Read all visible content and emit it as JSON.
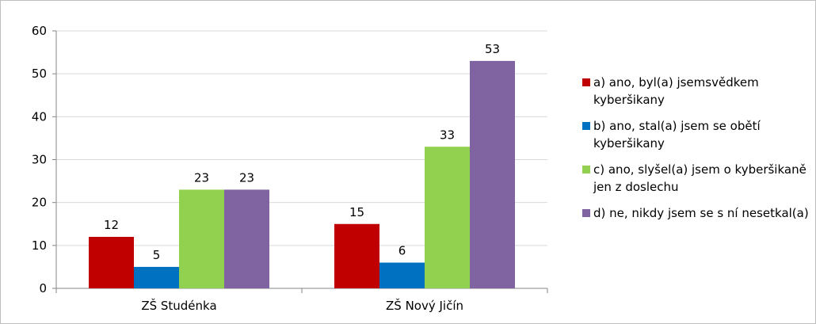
{
  "chart_data": {
    "type": "bar",
    "categories": [
      "ZŠ Studénka",
      "ZŠ Nový Jičín"
    ],
    "series": [
      {
        "name": "a) ano, byl(a) jsemsvědkem kyberšikany",
        "values": [
          12,
          15
        ],
        "color": "#C00000"
      },
      {
        "name": "b) ano, stal(a) jsem se obětí kyberšikany",
        "values": [
          5,
          6
        ],
        "color": "#0070C0"
      },
      {
        "name": "c) ano, slyšel(a) jsem o kyberšikaně jen z doslechu",
        "values": [
          23,
          33
        ],
        "color": "#92D050"
      },
      {
        "name": "d) ne, nikdy jsem se s ní nesetkal(a)",
        "values": [
          23,
          53
        ],
        "color": "#8064A2"
      }
    ],
    "yticks": [
      "0",
      "10",
      "20",
      "30",
      "40",
      "50",
      "60"
    ],
    "ylim": [
      0,
      60
    ],
    "grid": true,
    "legend_position": "right",
    "title": "",
    "xlabel": "",
    "ylabel": ""
  }
}
